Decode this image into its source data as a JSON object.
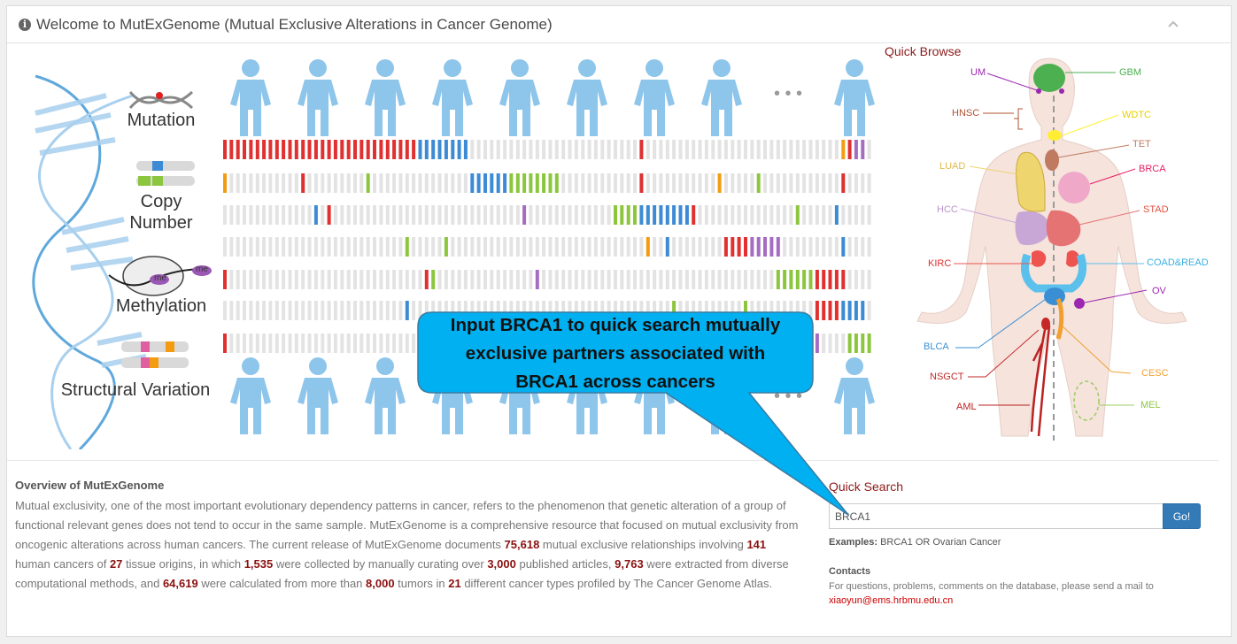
{
  "header": {
    "title": "Welcome to MutExGenome (Mutual Exclusive Alterations in Cancer Genome)"
  },
  "hero": {
    "labels": {
      "mutation": "Mutation",
      "copy_number_1": "Copy",
      "copy_number_2": "Number",
      "methylation": "Methylation",
      "structural_variation": "Structural Variation",
      "me": "me",
      "ellipsis": "• • •"
    }
  },
  "callout": {
    "line1": "Input BRCA1 to quick search mutually",
    "line2": "exclusive partners associated with",
    "line3": "BRCA1 across cancers"
  },
  "quick_browse": {
    "title": "Quick Browse",
    "organs": [
      "UM",
      "GBM",
      "HNSC",
      "WDTC",
      "TET",
      "LUAD",
      "BRCA",
      "HCC",
      "STAD",
      "KIRC",
      "COAD&READ",
      "OV",
      "BLCA",
      "CESC",
      "NSGCT",
      "MEL",
      "AML"
    ]
  },
  "overview": {
    "title": "Overview of MutExGenome",
    "s1": "Mutual exclusivity, one of the most important evolutionary dependency patterns in cancer, refers to the phenomenon that genetic alteration of a group of functional relevant genes does not tend to occur in the same sample. MutExGenome is a comprehensive resource that focused on mutual exclusivity from oncogenic alterations across human cancers. The current release of MutExGenome documents ",
    "n1": "75,618",
    "s2": " mutual exclusive relationships involving ",
    "n2": "141",
    "s3": " human cancers of ",
    "n3": "27",
    "s4": " tissue origins, in which ",
    "n4": "1,535",
    "s5": " were collected by manually curating over ",
    "n5": "3,000",
    "s6": " published articles, ",
    "n6": "9,763",
    "s7": " were extracted from diverse computational methods, and ",
    "n7": "64,619",
    "s8": " were calculated from more than ",
    "n8": "8,000",
    "s9": " tumors in ",
    "n9": "21",
    "s10": " different cancer types profiled by The Cancer Genome Atlas."
  },
  "quick_search": {
    "title": "Quick Search",
    "value": "BRCA1",
    "go_label": "Go!",
    "examples_label": "Examples:",
    "examples_text": " BRCA1 OR Ovarian Cancer"
  },
  "contacts": {
    "title": "Contacts",
    "text": "For questions, problems, comments on the database, please send a mail to",
    "email": "xiaoyun@ems.hrbmu.edu.cn"
  },
  "colors": {
    "brand_red": "#8b1a1a",
    "person_blue": "#8ec5ea",
    "callout_fill": "#00b0f0",
    "go_button": "#337ab7"
  }
}
